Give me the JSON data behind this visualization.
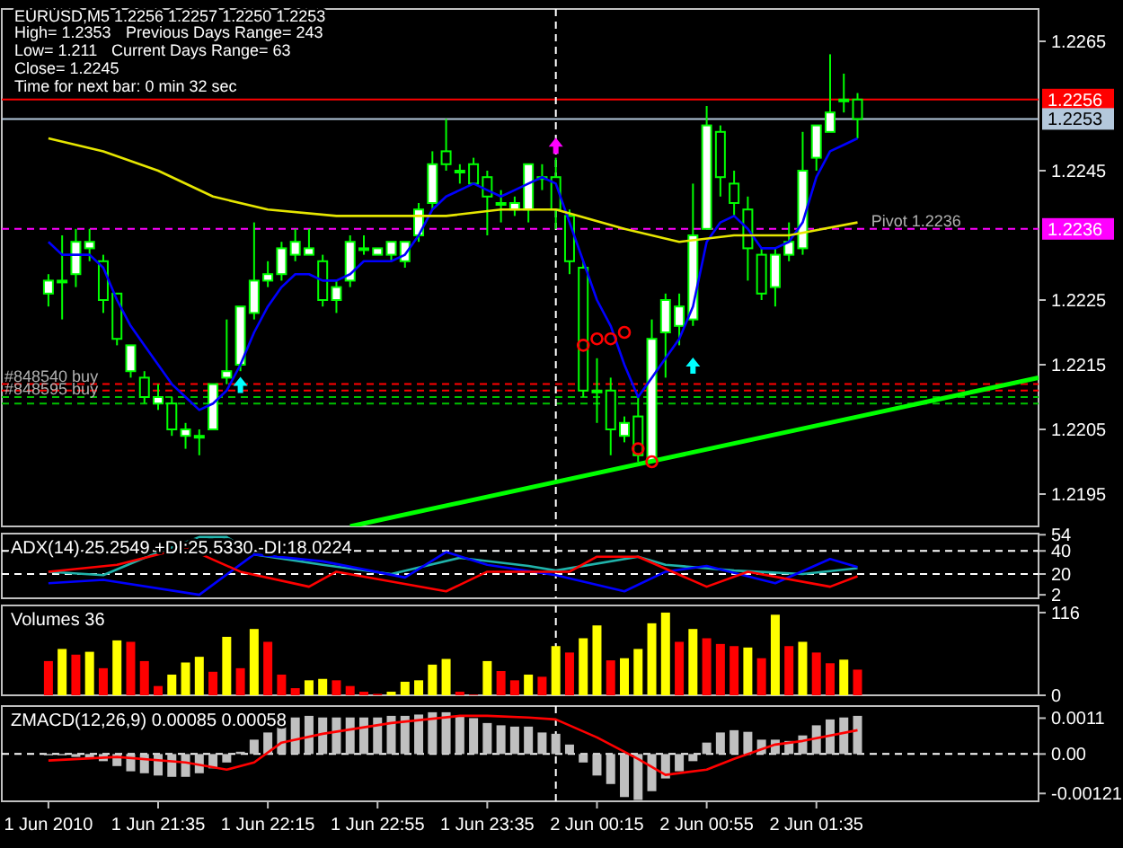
{
  "chart_data": [
    {
      "type": "candlestick",
      "title": "EURUSD,M5  1.2256 1.2257 1.2250 1.2253",
      "annotations": [
        "High= 1.2353",
        "Previous Days Range= 243",
        "Low= 1.211",
        "Current Days Range= 63",
        "Close= 1.2245",
        "Time for next bar: 0 min 32 sec",
        {
          "text": "Pivot  1.2236",
          "x": "2010-06-02T01:55",
          "y": 1.2236
        },
        {
          "text": "#848540 buy",
          "x": "2010-06-01T20:39",
          "y": 1.2212
        },
        {
          "text": "#848595 buy",
          "x": "2010-06-01T20:39",
          "y": 1.221
        }
      ],
      "x": [
        "2010-06-01T20:55",
        "2010-06-01T21:00",
        "2010-06-01T21:05",
        "2010-06-01T21:10",
        "2010-06-01T21:15",
        "2010-06-01T21:20",
        "2010-06-01T21:25",
        "2010-06-01T21:30",
        "2010-06-01T21:35",
        "2010-06-01T21:40",
        "2010-06-01T21:45",
        "2010-06-01T21:50",
        "2010-06-01T21:55",
        "2010-06-01T22:00",
        "2010-06-01T22:05",
        "2010-06-01T22:10",
        "2010-06-01T22:15",
        "2010-06-01T22:20",
        "2010-06-01T22:25",
        "2010-06-01T22:30",
        "2010-06-01T22:35",
        "2010-06-01T22:40",
        "2010-06-01T22:45",
        "2010-06-01T22:50",
        "2010-06-01T22:55",
        "2010-06-01T23:00",
        "2010-06-01T23:05",
        "2010-06-01T23:10",
        "2010-06-01T23:15",
        "2010-06-01T23:20",
        "2010-06-01T23:25",
        "2010-06-01T23:30",
        "2010-06-01T23:35",
        "2010-06-01T23:40",
        "2010-06-01T23:45",
        "2010-06-01T23:50",
        "2010-06-01T23:55",
        "2010-06-02T00:00",
        "2010-06-02T00:05",
        "2010-06-02T00:10",
        "2010-06-02T00:15",
        "2010-06-02T00:20",
        "2010-06-02T00:25",
        "2010-06-02T00:30",
        "2010-06-02T00:35",
        "2010-06-02T00:40",
        "2010-06-02T00:45",
        "2010-06-02T00:50",
        "2010-06-02T00:55",
        "2010-06-02T01:00",
        "2010-06-02T01:05",
        "2010-06-02T01:10",
        "2010-06-02T01:15",
        "2010-06-02T01:20",
        "2010-06-02T01:25",
        "2010-06-02T01:30",
        "2010-06-02T01:35",
        "2010-06-02T01:40",
        "2010-06-02T01:45",
        "2010-06-02T01:50"
      ],
      "ohlc": [
        [
          1.2226,
          1.2229,
          1.2224,
          1.2228
        ],
        [
          1.2228,
          1.2235,
          1.2222,
          1.2228
        ],
        [
          1.2229,
          1.2236,
          1.2227,
          1.2234
        ],
        [
          1.2233,
          1.2236,
          1.2231,
          1.2234
        ],
        [
          1.2231,
          1.2232,
          1.2223,
          1.2225
        ],
        [
          1.2226,
          1.2226,
          1.2218,
          1.2219
        ],
        [
          1.2214,
          1.2218,
          1.2213,
          1.2218
        ],
        [
          1.2213,
          1.2214,
          1.2209,
          1.221
        ],
        [
          1.2209,
          1.2212,
          1.2208,
          1.221
        ],
        [
          1.2209,
          1.221,
          1.2204,
          1.2205
        ],
        [
          1.2204,
          1.2206,
          1.2202,
          1.2205
        ],
        [
          1.2204,
          1.2205,
          1.2201,
          1.2204
        ],
        [
          1.2205,
          1.2212,
          1.2205,
          1.2212
        ],
        [
          1.2213,
          1.2222,
          1.2212,
          1.2214
        ],
        [
          1.2215,
          1.2224,
          1.2214,
          1.2224
        ],
        [
          1.2223,
          1.2237,
          1.2222,
          1.2228
        ],
        [
          1.2228,
          1.2231,
          1.2227,
          1.2229
        ],
        [
          1.2229,
          1.2234,
          1.2228,
          1.2233
        ],
        [
          1.2232,
          1.2236,
          1.2231,
          1.2234
        ],
        [
          1.2232,
          1.2236,
          1.2232,
          1.2233
        ],
        [
          1.2231,
          1.2232,
          1.2224,
          1.2225
        ],
        [
          1.2225,
          1.2228,
          1.2223,
          1.2227
        ],
        [
          1.2228,
          1.2235,
          1.2227,
          1.2234
        ],
        [
          1.2233,
          1.2235,
          1.2232,
          1.2233
        ],
        [
          1.2232,
          1.2233,
          1.2232,
          1.2233
        ],
        [
          1.2232,
          1.2234,
          1.2231,
          1.2234
        ],
        [
          1.2231,
          1.2234,
          1.223,
          1.2234
        ],
        [
          1.2235,
          1.224,
          1.2234,
          1.2239
        ],
        [
          1.224,
          1.2248,
          1.2239,
          1.2246
        ],
        [
          1.2248,
          1.2253,
          1.2245,
          1.2246
        ],
        [
          1.2245,
          1.2246,
          1.2243,
          1.2245
        ],
        [
          1.2246,
          1.2247,
          1.2243,
          1.2243
        ],
        [
          1.2244,
          1.2245,
          1.2235,
          1.2241
        ],
        [
          1.224,
          1.2242,
          1.2237,
          1.224
        ],
        [
          1.2239,
          1.2241,
          1.2238,
          1.224
        ],
        [
          1.2239,
          1.2246,
          1.2237,
          1.2246
        ],
        [
          1.2244,
          1.2246,
          1.2242,
          1.2244
        ],
        [
          1.2244,
          1.2247,
          1.2236,
          1.2239
        ],
        [
          1.2238,
          1.2239,
          1.2229,
          1.2231
        ],
        [
          1.223,
          1.2231,
          1.221,
          1.2211
        ],
        [
          1.2211,
          1.2216,
          1.2206,
          1.2211
        ],
        [
          1.2211,
          1.2213,
          1.2201,
          1.2205
        ],
        [
          1.2204,
          1.2207,
          1.2203,
          1.2206
        ],
        [
          1.2207,
          1.221,
          1.22,
          1.2201
        ],
        [
          1.22,
          1.2222,
          1.22,
          1.2219
        ],
        [
          1.222,
          1.2226,
          1.2213,
          1.2225
        ],
        [
          1.2221,
          1.2226,
          1.2218,
          1.2224
        ],
        [
          1.2222,
          1.2243,
          1.2221,
          1.2235
        ],
        [
          1.2236,
          1.2255,
          1.2236,
          1.2252
        ],
        [
          1.2251,
          1.2252,
          1.2241,
          1.2244
        ],
        [
          1.2243,
          1.2245,
          1.2238,
          1.224
        ],
        [
          1.2239,
          1.2241,
          1.2228,
          1.2233
        ],
        [
          1.2232,
          1.2233,
          1.2225,
          1.2226
        ],
        [
          1.2227,
          1.2233,
          1.2224,
          1.2232
        ],
        [
          1.2232,
          1.2237,
          1.2231,
          1.2234
        ],
        [
          1.2233,
          1.2251,
          1.2232,
          1.2245
        ],
        [
          1.2247,
          1.2252,
          1.2245,
          1.2252
        ],
        [
          1.2251,
          1.2263,
          1.2251,
          1.2254
        ],
        [
          1.2256,
          1.226,
          1.2254,
          1.2256
        ],
        [
          1.2256,
          1.2257,
          1.225,
          1.2253
        ]
      ],
      "series": [
        {
          "type": "line",
          "color": "#0000ff",
          "values": [
            1.2234,
            1.2232,
            1.2232,
            1.2232,
            1.223,
            1.2225,
            1.2221,
            1.2218,
            1.2215,
            1.2212,
            1.221,
            1.2208,
            1.2209,
            1.2211,
            1.2215,
            1.222,
            1.2224,
            1.2227,
            1.2229,
            1.2229,
            1.2228,
            1.2228,
            1.2229,
            1.2231,
            1.2231,
            1.2231,
            1.2232,
            1.2235,
            1.2239,
            1.2241,
            1.2242,
            1.2243,
            1.2242,
            1.2241,
            1.2242,
            1.2243,
            1.2244,
            1.2243,
            1.2237,
            1.2231,
            1.2225,
            1.2221,
            1.2215,
            1.221,
            1.2213,
            1.2216,
            1.2219,
            1.2224,
            1.2234,
            1.2237,
            1.2238,
            1.2236,
            1.2233,
            1.2233,
            1.2234,
            1.2237,
            1.2244,
            1.2248,
            1.2249,
            1.225
          ]
        },
        {
          "type": "line",
          "color": "#e6e600",
          "x": [
            "2010-06-01T20:55",
            "2010-06-01T21:15",
            "2010-06-01T21:35",
            "2010-06-01T21:55",
            "2010-06-01T22:15",
            "2010-06-01T22:40",
            "2010-06-01T23:00",
            "2010-06-01T23:20",
            "2010-06-01T23:40",
            "2010-06-02T00:00",
            "2010-06-02T00:25",
            "2010-06-02T00:45",
            "2010-06-02T01:05",
            "2010-06-02T01:25",
            "2010-06-02T01:50"
          ],
          "values": [
            1.225,
            1.2248,
            1.2245,
            1.2241,
            1.2239,
            1.2238,
            1.2238,
            1.2238,
            1.2239,
            1.2239,
            1.2236,
            1.2234,
            1.2235,
            1.2235,
            1.2237
          ]
        },
        {
          "type": "line",
          "color": "#00ff00",
          "x": [
            "2010-06-01T22:45",
            "2010-06-02T02:56"
          ],
          "values": [
            1.219,
            1.2213
          ]
        },
        {
          "type": "scatter",
          "marker": "circle",
          "color": "#ff0000",
          "x": [
            "2010-06-02T00:10",
            "2010-06-02T00:15",
            "2010-06-02T00:20",
            "2010-06-02T00:25",
            "2010-06-02T00:30",
            "2010-06-02T00:35"
          ],
          "values": [
            1.2218,
            1.2219,
            1.2219,
            1.222,
            1.2202,
            1.22
          ]
        },
        {
          "type": "scatter",
          "marker": "triangle",
          "color": "#00ffff",
          "x": [
            "2010-06-01T22:05",
            "2010-06-02T00:50"
          ],
          "values": [
            1.2212,
            1.2215
          ]
        },
        {
          "type": "scatter",
          "marker": "triangle",
          "color": "#ff00ff",
          "x": [
            "2010-06-02T00:00"
          ],
          "values": [
            1.2249
          ]
        }
      ],
      "xlim": [
        "2010-06-01T20:38",
        "2010-06-02T02:56"
      ],
      "ylim": [
        1.219,
        1.227
      ],
      "yticks": [
        1.2195,
        1.2205,
        1.2215,
        1.2225,
        1.2245,
        1.2265
      ],
      "ref_lines": [
        {
          "axis": "y",
          "value": 1.2256,
          "label": "1.2256",
          "color": "#ff0000"
        },
        {
          "axis": "y",
          "value": 1.2253,
          "label": "1.2253",
          "color": "#b4c8dc"
        },
        {
          "axis": "y",
          "value": 1.2236,
          "label": "1.2236",
          "color": "#ff00ff",
          "line_style": "dashed"
        },
        {
          "axis": "y",
          "value": 1.2212,
          "color": "#ff0000",
          "line_style": "dashed"
        },
        {
          "axis": "y",
          "value": 1.2211,
          "color": "#ff0000",
          "line_style": "dashed"
        },
        {
          "axis": "y",
          "value": 1.221,
          "color": "#00c000",
          "line_style": "dashed"
        },
        {
          "axis": "y",
          "value": 1.2209,
          "color": "#00c000",
          "line_style": "dashed"
        },
        {
          "axis": "x",
          "value": "2010-06-02T00:00",
          "color": "#ffffff",
          "line_style": "dashed"
        }
      ],
      "tick_labels": "y"
    },
    {
      "type": "line",
      "title": "ADX(14) 25.2549 +DI:25.5330 -DI:18.0224",
      "xlim": [
        "2010-06-01T20:38",
        "2010-06-02T02:56"
      ],
      "ylim": [
        -1,
        55
      ],
      "yticks": [
        2,
        20,
        40,
        54
      ],
      "series": [
        {
          "color": "#20b2aa",
          "x": [
            "2010-06-01T20:55",
            "2010-06-01T21:15",
            "2010-06-01T21:30",
            "2010-06-01T21:50",
            "2010-06-01T22:00",
            "2010-06-01T22:10",
            "2010-06-01T22:35",
            "2010-06-01T23:00",
            "2010-06-01T23:25",
            "2010-06-01T23:50",
            "2010-06-02T00:00",
            "2010-06-02T00:30",
            "2010-06-02T00:40",
            "2010-06-02T01:05",
            "2010-06-02T01:30",
            "2010-06-02T01:50"
          ],
          "values": [
            22,
            19,
            34,
            52,
            52,
            37,
            28,
            20,
            34,
            27,
            23,
            35,
            28,
            23,
            20,
            25
          ]
        },
        {
          "color": "#0000ff",
          "x": [
            "2010-06-01T20:55",
            "2010-06-01T21:15",
            "2010-06-01T21:50",
            "2010-06-01T22:10",
            "2010-06-01T22:35",
            "2010-06-01T23:05",
            "2010-06-01T23:20",
            "2010-06-01T23:35",
            "2010-06-02T00:00",
            "2010-06-02T00:25",
            "2010-06-02T00:40",
            "2010-06-02T00:55",
            "2010-06-02T01:20",
            "2010-06-02T01:40",
            "2010-06-02T01:50"
          ],
          "values": [
            12,
            15,
            2,
            37,
            31,
            17,
            39,
            28,
            19,
            5,
            22,
            27,
            12,
            33,
            26
          ]
        },
        {
          "color": "#ff0000",
          "x": [
            "2010-06-01T20:55",
            "2010-06-01T21:20",
            "2010-06-01T21:45",
            "2010-06-01T22:05",
            "2010-06-01T22:30",
            "2010-06-01T22:40",
            "2010-06-01T23:20",
            "2010-06-01T23:35",
            "2010-06-02T00:05",
            "2010-06-02T00:15",
            "2010-06-02T00:30",
            "2010-06-02T00:55",
            "2010-06-02T01:10",
            "2010-06-02T01:40",
            "2010-06-02T01:50"
          ],
          "values": [
            22,
            28,
            43,
            22,
            9,
            22,
            5,
            22,
            22,
            35,
            35,
            9,
            22,
            9,
            18
          ]
        }
      ],
      "ref_lines": [
        {
          "axis": "y",
          "value": 40,
          "color": "#ffffff",
          "line_style": "dashed"
        },
        {
          "axis": "y",
          "value": 20,
          "color": "#ffffff",
          "line_style": "dashed"
        },
        {
          "axis": "x",
          "value": "2010-06-02T00:00",
          "color": "#ffffff",
          "line_style": "dashed"
        }
      ],
      "tick_labels": "y"
    },
    {
      "type": "bar",
      "title": "Volumes 36",
      "xlim": [
        "2010-06-01T20:38",
        "2010-06-02T02:56"
      ],
      "ylim": [
        0,
        126
      ],
      "yticks": [
        0,
        116
      ],
      "x": [
        "2010-06-01T20:55",
        "2010-06-01T21:00",
        "2010-06-01T21:05",
        "2010-06-01T21:10",
        "2010-06-01T21:15",
        "2010-06-01T21:20",
        "2010-06-01T21:25",
        "2010-06-01T21:30",
        "2010-06-01T21:35",
        "2010-06-01T21:40",
        "2010-06-01T21:45",
        "2010-06-01T21:50",
        "2010-06-01T21:55",
        "2010-06-01T22:00",
        "2010-06-01T22:05",
        "2010-06-01T22:10",
        "2010-06-01T22:15",
        "2010-06-01T22:20",
        "2010-06-01T22:25",
        "2010-06-01T22:30",
        "2010-06-01T22:35",
        "2010-06-01T22:40",
        "2010-06-01T22:45",
        "2010-06-01T22:50",
        "2010-06-01T22:55",
        "2010-06-01T23:00",
        "2010-06-01T23:05",
        "2010-06-01T23:10",
        "2010-06-01T23:15",
        "2010-06-01T23:20",
        "2010-06-01T23:25",
        "2010-06-01T23:30",
        "2010-06-01T23:35",
        "2010-06-01T23:40",
        "2010-06-01T23:45",
        "2010-06-01T23:50",
        "2010-06-01T23:55",
        "2010-06-02T00:00",
        "2010-06-02T00:05",
        "2010-06-02T00:10",
        "2010-06-02T00:15",
        "2010-06-02T00:20",
        "2010-06-02T00:25",
        "2010-06-02T00:30",
        "2010-06-02T00:35",
        "2010-06-02T00:40",
        "2010-06-02T00:45",
        "2010-06-02T00:50",
        "2010-06-02T00:55",
        "2010-06-02T01:00",
        "2010-06-02T01:05",
        "2010-06-02T01:10",
        "2010-06-02T01:15",
        "2010-06-02T01:20",
        "2010-06-02T01:25",
        "2010-06-02T01:30",
        "2010-06-02T01:35",
        "2010-06-02T01:40",
        "2010-06-02T01:45",
        "2010-06-02T01:50"
      ],
      "values": [
        48,
        65,
        57,
        61,
        38,
        77,
        75,
        48,
        13,
        29,
        46,
        54,
        33,
        82,
        38,
        93,
        75,
        29,
        10,
        21,
        23,
        21,
        13,
        5,
        2,
        5,
        19,
        21,
        43,
        51,
        5,
        1,
        48,
        34,
        21,
        29,
        26,
        69,
        60,
        80,
        98,
        49,
        52,
        65,
        101,
        116,
        75,
        93,
        80,
        72,
        69,
        67,
        52,
        113,
        69,
        75,
        60,
        45,
        50,
        36
      ],
      "colors": [
        "#ff0000",
        "#ffff00",
        "#ff0000",
        "#ffff00",
        "#ff0000",
        "#ffff00",
        "#ff0000",
        "#ff0000",
        "#ff0000",
        "#ffff00",
        "#ffff00",
        "#ffff00",
        "#ff0000",
        "#ffff00",
        "#ff0000",
        "#ffff00",
        "#ff0000",
        "#ff0000",
        "#ff0000",
        "#ffff00",
        "#ffff00",
        "#ff0000",
        "#ff0000",
        "#ff0000",
        "#ff0000",
        "#ffff00",
        "#ffff00",
        "#ffff00",
        "#ffff00",
        "#ffff00",
        "#ff0000",
        "#ff0000",
        "#ffff00",
        "#ff0000",
        "#ff0000",
        "#ffff00",
        "#ff0000",
        "#ffff00",
        "#ff0000",
        "#ffff00",
        "#ffff00",
        "#ff0000",
        "#ffff00",
        "#ffff00",
        "#ffff00",
        "#ffff00",
        "#ff0000",
        "#ffff00",
        "#ff0000",
        "#ff0000",
        "#ff0000",
        "#ffff00",
        "#ff0000",
        "#ffff00",
        "#ff0000",
        "#ffff00",
        "#ff0000",
        "#ff0000",
        "#ffff00",
        "#ff0000"
      ],
      "ref_lines": [
        {
          "axis": "x",
          "value": "2010-06-02T00:00",
          "color": "#ffffff",
          "line_style": "dashed"
        }
      ],
      "tick_labels": "y"
    },
    {
      "type": "bar",
      "title": "ZMACD(12,26,9) 0.00085 0.00058",
      "xlim": [
        "2010-06-01T20:38",
        "2010-06-02T02:56"
      ],
      "ylim": [
        -0.00145,
        0.00147
      ],
      "yticks": [
        0.0011,
        {
          "value": 0,
          "label": "0.00"
        },
        -0.00121
      ],
      "xticks": [
        {
          "value": "2010-06-01T20:55",
          "label": "1 Jun 2010"
        },
        {
          "value": "2010-06-01T21:35",
          "label": "1 Jun 21:35"
        },
        {
          "value": "2010-06-01T22:15",
          "label": "1 Jun 22:15"
        },
        {
          "value": "2010-06-01T22:55",
          "label": "1 Jun 22:55"
        },
        {
          "value": "2010-06-01T23:35",
          "label": "1 Jun 23:35"
        },
        {
          "value": "2010-06-02T00:15",
          "label": "2 Jun 00:15"
        },
        {
          "value": "2010-06-02T00:55",
          "label": "2 Jun 00:55"
        },
        {
          "value": "2010-06-02T01:35",
          "label": "2 Jun 01:35"
        }
      ],
      "x": [
        "2010-06-01T20:55",
        "2010-06-01T21:00",
        "2010-06-01T21:05",
        "2010-06-01T21:10",
        "2010-06-01T21:15",
        "2010-06-01T21:20",
        "2010-06-01T21:25",
        "2010-06-01T21:30",
        "2010-06-01T21:35",
        "2010-06-01T21:40",
        "2010-06-01T21:45",
        "2010-06-01T21:50",
        "2010-06-01T21:55",
        "2010-06-01T22:00",
        "2010-06-01T22:05",
        "2010-06-01T22:10",
        "2010-06-01T22:15",
        "2010-06-01T22:20",
        "2010-06-01T22:25",
        "2010-06-01T22:30",
        "2010-06-01T22:35",
        "2010-06-01T22:40",
        "2010-06-01T22:45",
        "2010-06-01T22:50",
        "2010-06-01T22:55",
        "2010-06-01T23:00",
        "2010-06-01T23:05",
        "2010-06-01T23:10",
        "2010-06-01T23:15",
        "2010-06-01T23:20",
        "2010-06-01T23:25",
        "2010-06-01T23:30",
        "2010-06-01T23:35",
        "2010-06-01T23:40",
        "2010-06-01T23:45",
        "2010-06-01T23:50",
        "2010-06-01T23:55",
        "2010-06-02T00:00",
        "2010-06-02T00:05",
        "2010-06-02T00:10",
        "2010-06-02T00:15",
        "2010-06-02T00:20",
        "2010-06-02T00:25",
        "2010-06-02T00:30",
        "2010-06-02T00:35",
        "2010-06-02T00:40",
        "2010-06-02T00:45",
        "2010-06-02T00:50",
        "2010-06-02T00:55",
        "2010-06-02T01:00",
        "2010-06-02T01:05",
        "2010-06-02T01:10",
        "2010-06-02T01:15",
        "2010-06-02T01:20",
        "2010-06-02T01:25",
        "2010-06-02T01:30",
        "2010-06-02T01:35",
        "2010-06-02T01:40",
        "2010-06-02T01:45",
        "2010-06-02T01:50"
      ],
      "series": [
        {
          "type": "bar",
          "color": "#c0c0c0",
          "values": [
            -4e-05,
            -4e-05,
            -9e-05,
            -0.00015,
            -0.00022,
            -0.00037,
            -0.00053,
            -0.00059,
            -0.00066,
            -0.0007,
            -0.0007,
            -0.00059,
            -0.00044,
            -0.00026,
            7e-05,
            0.00044,
            0.00066,
            0.00095,
            0.00112,
            0.00117,
            0.00112,
            0.00112,
            0.00112,
            0.00112,
            0.00112,
            0.00117,
            0.00117,
            0.00121,
            0.00128,
            0.00128,
            0.00117,
            0.0011,
            0.00095,
            0.00088,
            0.00084,
            0.00084,
            0.00066,
            0.00062,
            0.00029,
            -0.00026,
            -0.00066,
            -0.00092,
            -0.00132,
            -0.00141,
            -0.00114,
            -0.00075,
            -0.00053,
            -0.00022,
            0.00035,
            0.00066,
            0.00073,
            0.00068,
            0.00044,
            0.00044,
            0.0004,
            0.00057,
            0.00088,
            0.00106,
            0.00112,
            0.00117
          ]
        },
        {
          "type": "line",
          "color": "#ff0000",
          "x": [
            "2010-06-01T20:55",
            "2010-06-01T21:20",
            "2010-06-01T21:45",
            "2010-06-01T22:00",
            "2010-06-01T22:10",
            "2010-06-01T22:20",
            "2010-06-01T22:35",
            "2010-06-01T23:00",
            "2010-06-01T23:25",
            "2010-06-01T23:35",
            "2010-06-01T23:50",
            "2010-06-02T00:00",
            "2010-06-02T00:15",
            "2010-06-02T00:30",
            "2010-06-02T00:40",
            "2010-06-02T00:55",
            "2010-06-02T01:05",
            "2010-06-02T01:20",
            "2010-06-02T01:30",
            "2010-06-02T01:50"
          ],
          "values": [
            -0.0002,
            -9e-05,
            -0.00026,
            -0.00048,
            -0.00026,
            0.00035,
            0.00062,
            0.00095,
            0.00117,
            0.00117,
            0.00112,
            0.00106,
            0.00051,
            -0.00015,
            -0.00064,
            -0.00048,
            -0.00015,
            0.00029,
            0.0004,
            0.00073
          ]
        }
      ],
      "ref_lines": [
        {
          "axis": "y",
          "value": 0,
          "color": "#ffffff",
          "line_style": "dashed"
        },
        {
          "axis": "x",
          "value": "2010-06-02T00:00",
          "color": "#ffffff",
          "line_style": "dashed"
        }
      ]
    }
  ]
}
